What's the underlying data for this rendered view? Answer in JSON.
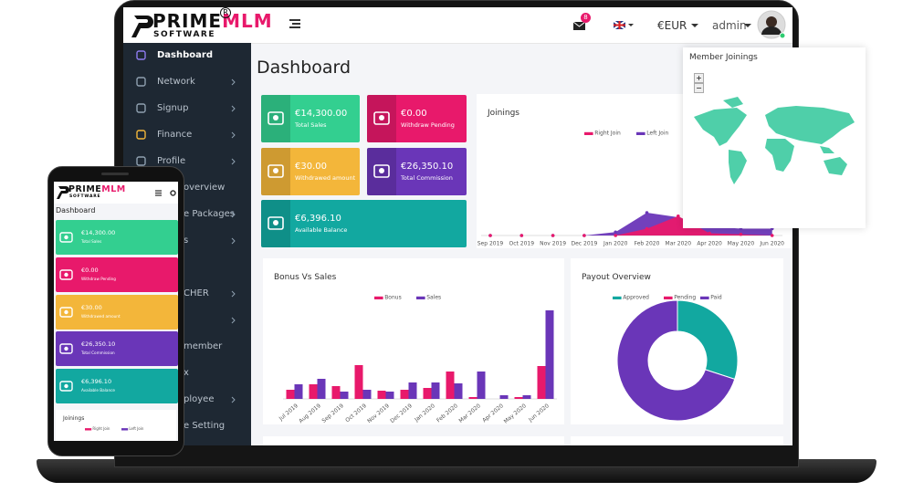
{
  "logo": {
    "name_1": "PRIME",
    "name_2": "MLM",
    "tagline": "SOFTWARE",
    "mark": "R"
  },
  "header": {
    "notification_count": "8",
    "currency": "€EUR",
    "user": "admin"
  },
  "sidebar": {
    "items": [
      "Dashboard",
      "Network",
      "Signup",
      "Finance",
      "Profile"
    ],
    "partial_items": [
      "overview",
      "e Packages",
      "s",
      "CHER",
      "member",
      "x",
      "ployee",
      "e Setting"
    ]
  },
  "page_title": "Dashboard",
  "tiles": [
    {
      "value": "€14,300.00",
      "label": "Total Sales",
      "color": "#33cf90"
    },
    {
      "value": "€0.00",
      "label": "Withdraw Pending",
      "color": "#e8196b"
    },
    {
      "value": "€30.00",
      "label": "Withdrawed amount",
      "color": "#f3b63a"
    },
    {
      "value": "€26,350.10",
      "label": "Total Commission",
      "color": "#6a36b8"
    },
    {
      "value": "€6,396.10",
      "label": "Available Balance",
      "color": "#12a8a0"
    }
  ],
  "map_widget": {
    "title": "Member Joinings",
    "zoom_in": "+",
    "zoom_out": "−"
  },
  "chart_data": [
    {
      "type": "area",
      "title": "Joinings",
      "categories": [
        "Sep 2019",
        "Oct 2019",
        "Nov 2019",
        "Dec 2019",
        "Jan 2020",
        "Feb 2020",
        "Mar 2020",
        "Apr 2020",
        "May 2020",
        "Jun 2020"
      ],
      "series": [
        {
          "name": "Right Join",
          "color": "#e8196b",
          "values": [
            0,
            0,
            0,
            0,
            0,
            0.6,
            1.7,
            0.2,
            0.1,
            0
          ]
        },
        {
          "name": "Left Join",
          "color": "#6a36b8",
          "values": [
            0,
            0,
            0,
            0,
            0.3,
            2.0,
            1.6,
            0.8,
            0.6,
            0.6
          ]
        }
      ],
      "ylim": [
        0,
        10
      ]
    },
    {
      "type": "bar",
      "title": "Bonus Vs Sales",
      "categories": [
        "Jul 2019",
        "Aug 2019",
        "Sep 2019",
        "Oct 2019",
        "Nov 2019",
        "Dec 2019",
        "Jan 2020",
        "Feb 2020",
        "Mar 2020",
        "Apr 2020",
        "May 2020",
        "Jun 2020"
      ],
      "series": [
        {
          "name": "Bonus",
          "color": "#e8196b",
          "values": [
            10,
            16,
            14,
            37,
            9,
            10,
            12,
            30,
            2,
            0,
            2,
            36
          ]
        },
        {
          "name": "Sales",
          "color": "#6a36b8",
          "values": [
            16,
            22,
            8,
            10,
            8,
            18,
            18,
            17,
            30,
            4,
            4,
            97
          ]
        }
      ],
      "ylim": [
        0,
        100
      ]
    },
    {
      "type": "donut",
      "title": "Payout Overview",
      "categories": [
        "Approved",
        "Pending",
        "Paid"
      ],
      "colors": [
        "#12a8a0",
        "#e8196b",
        "#6a36b8"
      ],
      "values": [
        30,
        0,
        70
      ]
    }
  ]
}
